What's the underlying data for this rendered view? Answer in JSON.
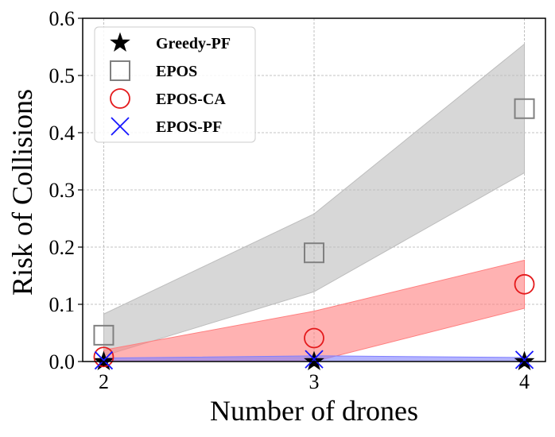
{
  "chart_data": {
    "type": "scatter",
    "x": [
      2,
      3,
      4
    ],
    "xticks": [
      "2",
      "3",
      "4"
    ],
    "yticks": [
      "0.0",
      "0.1",
      "0.2",
      "0.3",
      "0.4",
      "0.5",
      "0.6"
    ],
    "xlabel": "Number of drones",
    "ylabel": "Risk of Collisions",
    "xlim": [
      1.9,
      4.1
    ],
    "ylim": [
      0.0,
      0.6
    ],
    "grid": true,
    "legend_position": "top-left",
    "series": [
      {
        "name": "Greedy-PF",
        "marker": "star",
        "color": "#000000",
        "values": [
          0.0,
          0.0,
          0.0
        ],
        "band_lower": null,
        "band_upper": null,
        "band_color": null
      },
      {
        "name": "EPOS",
        "marker": "square",
        "color": "#808080",
        "values": [
          0.046,
          0.19,
          0.442
        ],
        "band_lower": [
          0.01,
          0.122,
          0.33
        ],
        "band_upper": [
          0.083,
          0.258,
          0.555
        ],
        "band_color": "#bdbdbd"
      },
      {
        "name": "EPOS-CA",
        "marker": "circle",
        "color": "#e41a1c",
        "values": [
          0.008,
          0.041,
          0.135
        ],
        "band_lower": [
          0.0,
          0.0,
          0.093
        ],
        "band_upper": [
          0.02,
          0.088,
          0.177
        ],
        "band_color": "#ff7f7f"
      },
      {
        "name": "EPOS-PF",
        "marker": "x",
        "color": "#1515ff",
        "values": [
          0.002,
          0.004,
          0.003
        ],
        "band_lower": [
          0.0,
          0.0,
          0.0
        ],
        "band_upper": [
          0.006,
          0.01,
          0.007
        ],
        "band_color": "#8080ff"
      }
    ]
  }
}
